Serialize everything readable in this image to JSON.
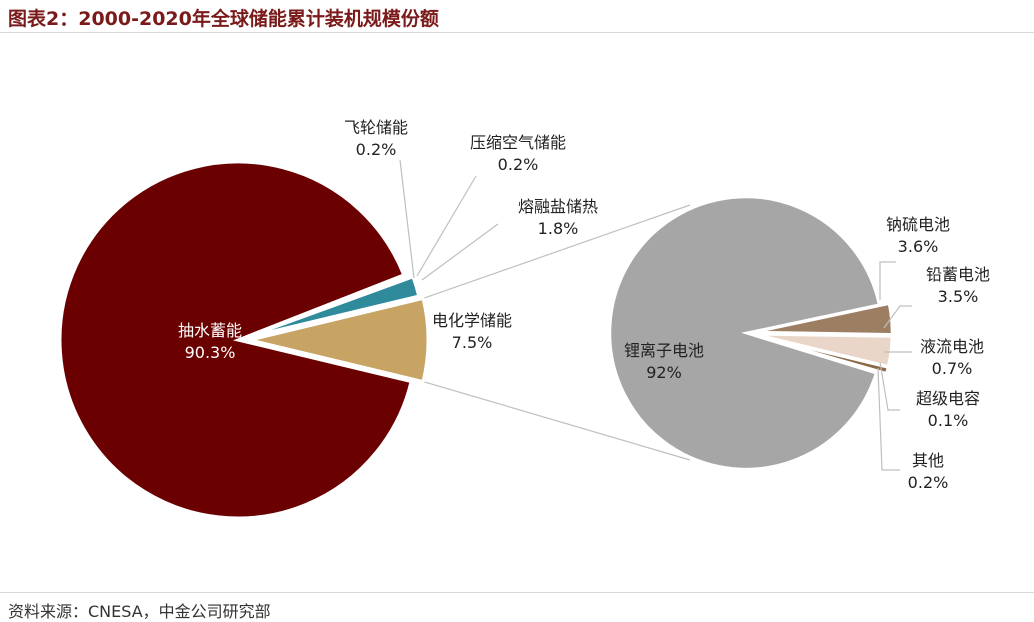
{
  "title": "图表2：2000-2020年全球储能累计装机规模份额",
  "source": "资料来源：CNESA，中金公司研究部",
  "colors": {
    "pumped": "#6b0000",
    "chem": "#c7a463",
    "molten": "#2f8a9c",
    "compressed": "#dad6d2",
    "flywheel": "#a11a1a",
    "liion": "#a6a6a6",
    "nas": "#9c7e63",
    "lead": "#ead6c8",
    "flow": "#8a6a44",
    "supercap": "#e8e2da",
    "other": "#cccccc",
    "title": "#7a1a1a"
  },
  "chart_data": [
    {
      "type": "pie",
      "slices": [
        {
          "name": "抽水蓄能",
          "value": 90.3,
          "label": "90.3%"
        },
        {
          "name": "电化学储能",
          "value": 7.5,
          "label": "7.5%"
        },
        {
          "name": "熔融盐储热",
          "value": 1.8,
          "label": "1.8%"
        },
        {
          "name": "压缩空气储能",
          "value": 0.2,
          "label": "0.2%"
        },
        {
          "name": "飞轮储能",
          "value": 0.2,
          "label": "0.2%"
        }
      ]
    },
    {
      "type": "pie",
      "slices": [
        {
          "name": "锂离子电池",
          "value": 92,
          "label": "92%"
        },
        {
          "name": "钠硫电池",
          "value": 3.6,
          "label": "3.6%"
        },
        {
          "name": "铅蓄电池",
          "value": 3.5,
          "label": "3.5%"
        },
        {
          "name": "液流电池",
          "value": 0.7,
          "label": "0.7%"
        },
        {
          "name": "超级电容",
          "value": 0.1,
          "label": "0.1%"
        },
        {
          "name": "其他",
          "value": 0.2,
          "label": "0.2%"
        }
      ]
    }
  ]
}
